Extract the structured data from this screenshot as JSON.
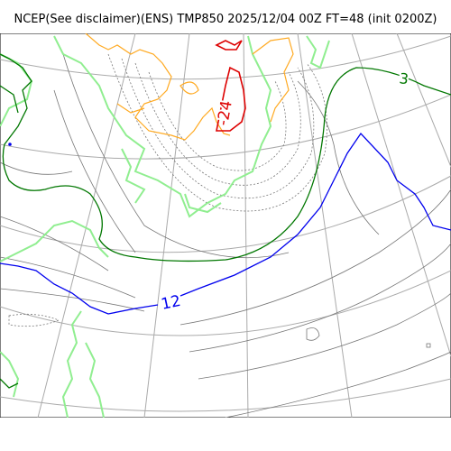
{
  "title": "NCEP(See disclaimer)(ENS) TMP850 2025/12/04 00Z FT=48 (init 0200Z)",
  "colors": {
    "graticule": "#aaaaaa",
    "coastline": "#90ee90",
    "minor_contour": "#777777",
    "isotherm_3": "#007700",
    "isotherm_12": "#0000ee",
    "warm_contour": "#ffaa22",
    "cold_core_contour": "#dd0000"
  },
  "contour_labels": [
    {
      "name": "contour-label-3",
      "text": "3",
      "color": "#007700"
    },
    {
      "name": "contour-label-12",
      "text": "12",
      "color": "#0000ee"
    },
    {
      "name": "contour-label-minus24",
      "text": "-24",
      "color": "#dd0000"
    }
  ]
}
